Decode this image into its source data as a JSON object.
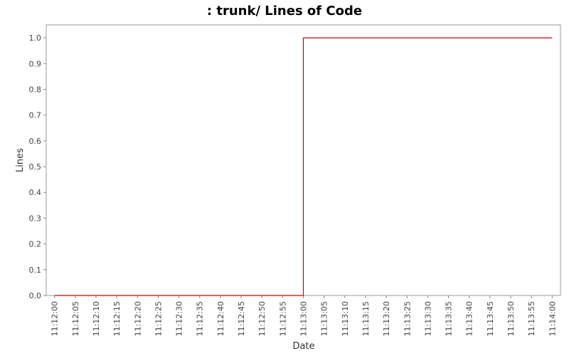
{
  "chart_data": {
    "type": "line",
    "line_style": "step",
    "title": ": trunk/ Lines of Code",
    "xlabel": "Date",
    "ylabel": "Lines",
    "x_ticks": [
      "11:12:00",
      "11:12:05",
      "11:12:10",
      "11:12:15",
      "11:12:20",
      "11:12:25",
      "11:12:30",
      "11:12:35",
      "11:12:40",
      "11:12:45",
      "11:12:50",
      "11:12:55",
      "11:13:00",
      "11:13:05",
      "11:13:10",
      "11:13:15",
      "11:13:20",
      "11:13:25",
      "11:13:30",
      "11:13:35",
      "11:13:40",
      "11:13:45",
      "11:13:50",
      "11:13:55",
      "11:14:00"
    ],
    "y_ticks": [
      "0.0",
      "0.1",
      "0.2",
      "0.3",
      "0.4",
      "0.5",
      "0.6",
      "0.7",
      "0.8",
      "0.9",
      "1.0"
    ],
    "ylim": [
      0,
      1.05
    ],
    "xlim": [
      "11:11:58",
      "11:14:02"
    ],
    "grid": false,
    "series": [
      {
        "color": "#cc0000",
        "points": [
          {
            "x": "11:12:00",
            "y": 0
          },
          {
            "x": "11:13:00",
            "y": 1
          },
          {
            "x": "11:14:00",
            "y": 1
          }
        ]
      }
    ]
  }
}
